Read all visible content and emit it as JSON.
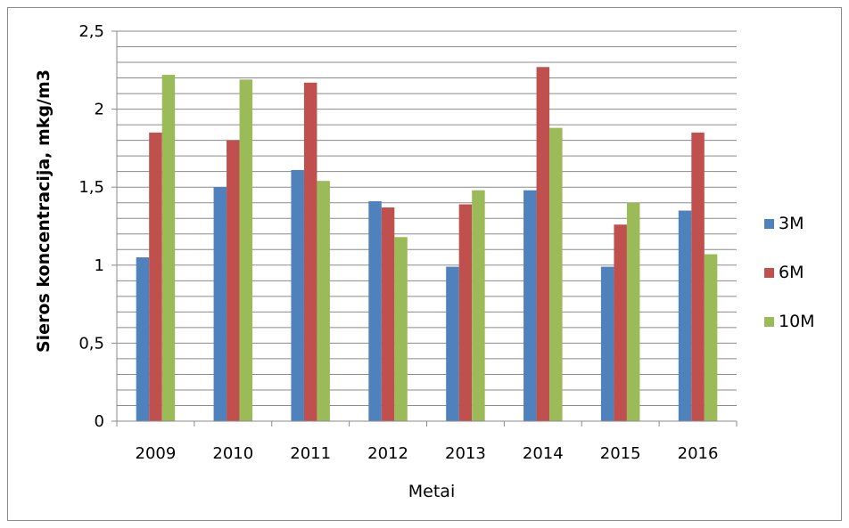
{
  "chart_data": {
    "type": "bar",
    "categories": [
      "2009",
      "2010",
      "2011",
      "2012",
      "2013",
      "2014",
      "2015",
      "2016"
    ],
    "series": [
      {
        "name": "3M",
        "color": "#4f81bd",
        "values": [
          1.05,
          1.5,
          1.61,
          1.41,
          0.99,
          1.48,
          0.99,
          1.35
        ]
      },
      {
        "name": "6M",
        "color": "#c0504d",
        "values": [
          1.85,
          1.8,
          2.17,
          1.37,
          1.39,
          2.27,
          1.26,
          1.85
        ]
      },
      {
        "name": "10M",
        "color": "#9bbb59",
        "values": [
          2.22,
          2.19,
          1.54,
          1.18,
          1.48,
          1.88,
          1.4,
          1.07
        ]
      }
    ],
    "xlabel": "Metai",
    "ylabel": "Sieros koncentracija, mkg/m3",
    "ylim": [
      0,
      2.5
    ],
    "yticks": [
      "0",
      "0,5",
      "1",
      "1,5",
      "2",
      "2,5"
    ],
    "ytick_values": [
      0,
      0.5,
      1,
      1.5,
      2,
      2.5
    ],
    "minor_gridline_step": 0.1,
    "grid": true,
    "legend_position": "right"
  }
}
